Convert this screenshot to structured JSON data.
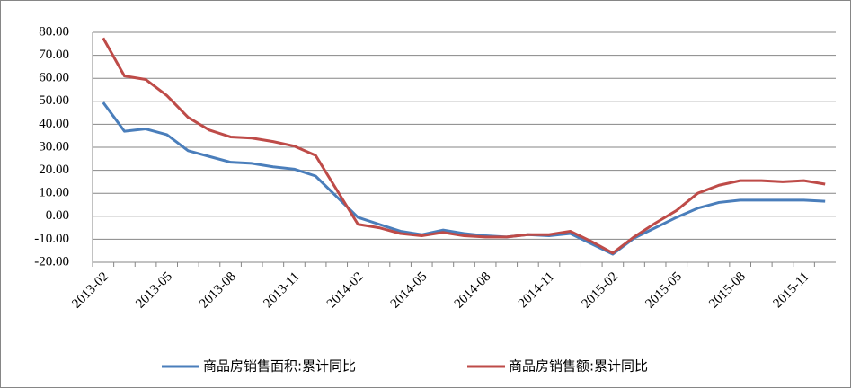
{
  "chart_data": {
    "type": "line",
    "categories": [
      "2013-02",
      null,
      null,
      "2013-05",
      null,
      null,
      "2013-08",
      null,
      null,
      "2013-11",
      null,
      null,
      "2014-02",
      null,
      null,
      "2014-05",
      null,
      null,
      "2014-08",
      null,
      null,
      "2014-11",
      null,
      null,
      "2015-02",
      null,
      null,
      "2015-05",
      null,
      null,
      "2015-08",
      null,
      null,
      "2015-11",
      null
    ],
    "series": [
      {
        "name": "商品房销售面积:累计同比",
        "color": "#4a7ebb",
        "values": [
          49.5,
          37,
          38,
          35.5,
          28.5,
          26,
          23.5,
          23,
          21.5,
          20.5,
          17.5,
          8.5,
          -0.5,
          -3.5,
          -6.5,
          -8,
          -6,
          -7.5,
          -8.5,
          -9,
          -8,
          -8.5,
          -7.5,
          -12,
          -16.5,
          -9.5,
          -5,
          -0.5,
          3.5,
          6,
          7,
          7,
          7,
          7,
          6.5
        ]
      },
      {
        "name": "商品房销售额:累计同比",
        "color": "#be4b48",
        "values": [
          77.5,
          61,
          59.5,
          52.5,
          43,
          37.5,
          34.5,
          34,
          32.5,
          30.5,
          26.5,
          11.5,
          -3.5,
          -5,
          -7.5,
          -8.5,
          -7,
          -8.5,
          -9,
          -9,
          -8,
          -8,
          -6.5,
          -11,
          -16,
          -9,
          -3,
          2.5,
          10,
          13.5,
          15.5,
          15.5,
          15,
          15.5,
          14
        ]
      }
    ],
    "ylim": [
      -20,
      80
    ],
    "yticks": [
      {
        "value": -20,
        "label": "-20.00"
      },
      {
        "value": -10,
        "label": "-10.00"
      },
      {
        "value": 0,
        "label": "0.00"
      },
      {
        "value": 10,
        "label": "10.00"
      },
      {
        "value": 20,
        "label": "20.00"
      },
      {
        "value": 30,
        "label": "30.00"
      },
      {
        "value": 40,
        "label": "40.00"
      },
      {
        "value": 50,
        "label": "50.00"
      },
      {
        "value": 60,
        "label": "60.00"
      },
      {
        "value": 70,
        "label": "70.00"
      },
      {
        "value": 80,
        "label": "80.00"
      }
    ],
    "grid": true,
    "legend": "bottom"
  }
}
